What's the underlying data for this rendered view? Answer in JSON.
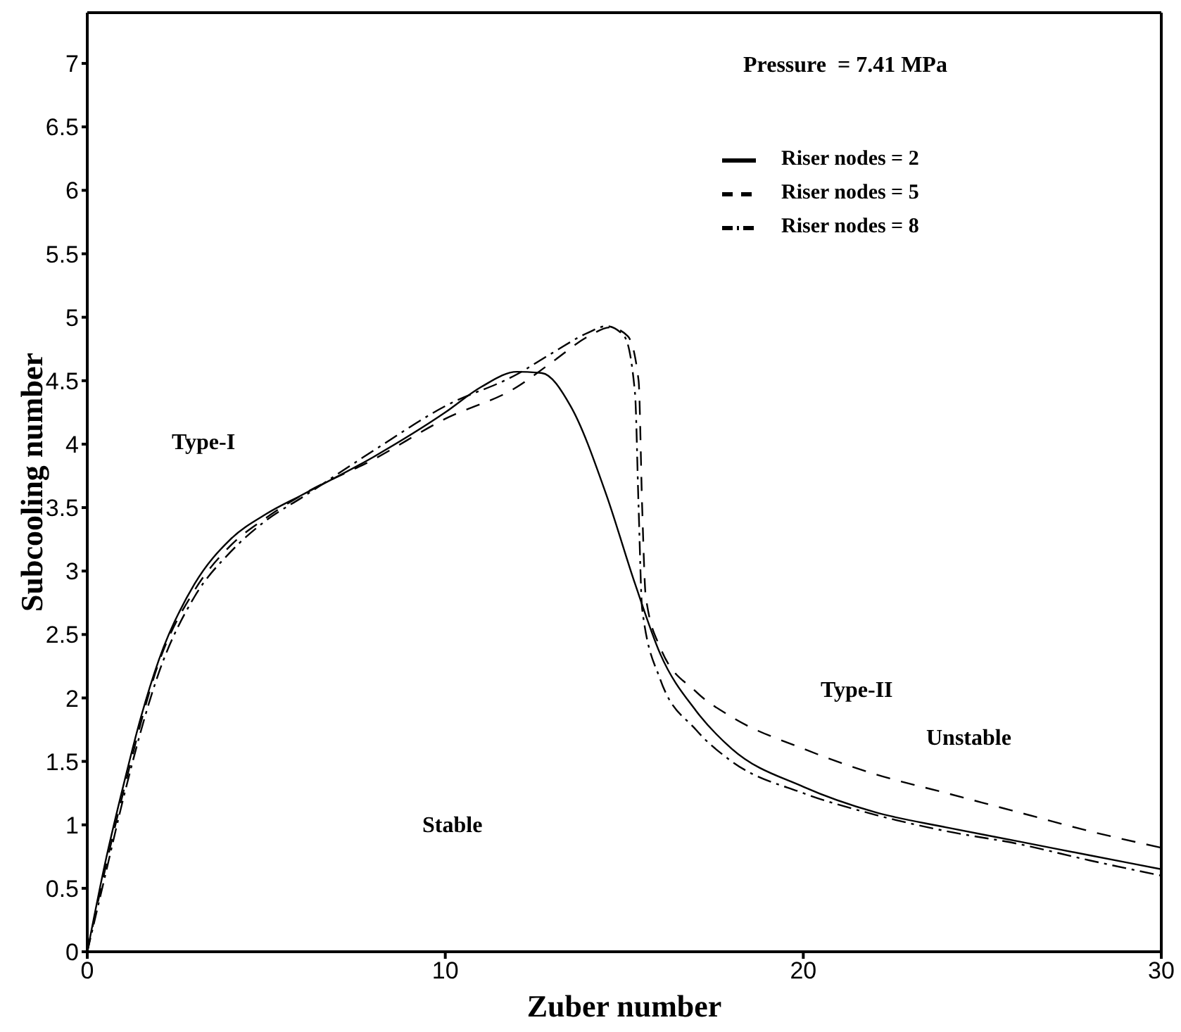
{
  "chart_data": {
    "type": "line",
    "xlabel": "Zuber number",
    "ylabel": "Subcooling number",
    "xlim": [
      0,
      30
    ],
    "xticks": [
      0,
      10,
      20,
      30
    ],
    "ylim": [
      0,
      7.4
    ],
    "yticks": [
      0,
      0.5,
      1,
      1.5,
      2,
      2.5,
      3,
      3.5,
      4,
      4.5,
      5,
      5.5,
      6,
      6.5,
      7
    ],
    "grid": false,
    "legend": "top right",
    "marker": "none",
    "annotations": [
      "Pressure  = 7.41 MPa",
      "Type-I",
      "Stable",
      "Type-II",
      "Unstable"
    ],
    "series": [
      {
        "name": "Riser nodes = 2",
        "color": "#000000",
        "line_style": "solid",
        "x": [
          0,
          0.5,
          1,
          1.5,
          2,
          3,
          4,
          5,
          6,
          8,
          10,
          11,
          12,
          12.7,
          13.5,
          14.5,
          15.3,
          16,
          17,
          18,
          20,
          22,
          24,
          26,
          28,
          30
        ],
        "values": [
          0,
          0.7,
          1.3,
          1.85,
          2.3,
          2.9,
          3.25,
          3.45,
          3.6,
          3.9,
          4.25,
          4.45,
          4.57,
          4.56,
          4.3,
          3.6,
          2.9,
          2.35,
          1.9,
          1.6,
          1.3,
          1.1,
          0.98,
          0.87,
          0.76,
          0.65
        ]
      },
      {
        "name": "Riser nodes = 5",
        "color": "#000000",
        "line_style": "dashed",
        "x": [
          0,
          0.5,
          1,
          2,
          3,
          4,
          5,
          6,
          8,
          10,
          12,
          13,
          14,
          14.6,
          15.1,
          15.4,
          15.5,
          15.6,
          16,
          17,
          18,
          20,
          22,
          24,
          26,
          28,
          30
        ],
        "values": [
          0,
          0.65,
          1.25,
          2.28,
          2.85,
          3.2,
          3.42,
          3.6,
          3.88,
          4.2,
          4.45,
          4.65,
          4.85,
          4.92,
          4.85,
          4.5,
          3.5,
          2.8,
          2.4,
          2.05,
          1.85,
          1.6,
          1.4,
          1.25,
          1.1,
          0.95,
          0.82
        ]
      },
      {
        "name": "Riser nodes = 8",
        "color": "#000000",
        "line_style": "dashdot",
        "x": [
          0,
          0.5,
          1,
          2,
          3,
          4,
          5,
          6,
          8,
          10,
          12,
          13,
          14,
          14.5,
          15,
          15.3,
          15.4,
          15.5,
          16,
          17,
          18,
          20,
          22,
          24,
          26,
          28,
          30
        ],
        "values": [
          0,
          0.6,
          1.2,
          2.2,
          2.8,
          3.15,
          3.4,
          3.58,
          3.95,
          4.3,
          4.55,
          4.72,
          4.88,
          4.93,
          4.85,
          4.4,
          3.5,
          2.7,
          2.15,
          1.75,
          1.5,
          1.25,
          1.08,
          0.95,
          0.85,
          0.72,
          0.6
        ]
      }
    ]
  }
}
